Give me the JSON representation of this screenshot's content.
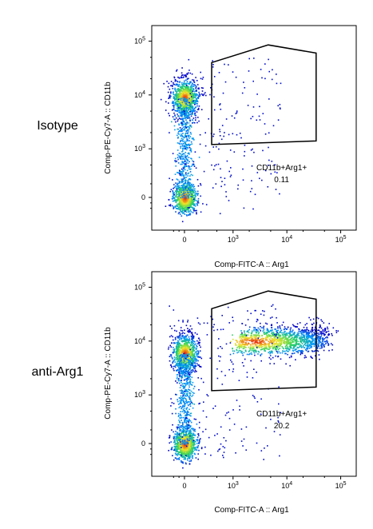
{
  "chart_data": [
    {
      "type": "scatter",
      "row_label": "Isotype",
      "title": "",
      "xlabel": "Comp-FITC-A :: Arg1",
      "ylabel": "Comp-PE-Cy7-A :: CD11b",
      "x_scale": "biexponential",
      "y_scale": "biexponential",
      "x_ticks": [
        {
          "value": 0,
          "label": "0"
        },
        {
          "value": 1000,
          "label": "10^3"
        },
        {
          "value": 10000,
          "label": "10^4"
        },
        {
          "value": 100000,
          "label": "10^5"
        }
      ],
      "y_ticks": [
        {
          "value": 0,
          "label": "0"
        },
        {
          "value": 1000,
          "label": "10^3"
        },
        {
          "value": 10000,
          "label": "10^4"
        },
        {
          "value": 100000,
          "label": "10^5"
        }
      ],
      "gate": {
        "name": "CD11b+Arg1+",
        "percent": "0.11",
        "vertices": [
          [
            400,
            40000
          ],
          [
            4500,
            85000
          ],
          [
            35000,
            60000
          ],
          [
            35000,
            1400
          ],
          [
            400,
            1200
          ]
        ]
      },
      "populations": [
        {
          "name": "CD11b- Arg1-",
          "x": 0,
          "y": 0,
          "density": "high"
        },
        {
          "name": "CD11b+ Arg1-",
          "x": 0,
          "y": 9000,
          "density": "high"
        }
      ]
    },
    {
      "type": "scatter",
      "row_label": "anti-Arg1",
      "title": "",
      "xlabel": "Comp-FITC-A :: Arg1",
      "ylabel": "Comp-PE-Cy7-A :: CD11b",
      "x_scale": "biexponential",
      "y_scale": "biexponential",
      "x_ticks": [
        {
          "value": 0,
          "label": "0"
        },
        {
          "value": 1000,
          "label": "10^3"
        },
        {
          "value": 10000,
          "label": "10^4"
        },
        {
          "value": 100000,
          "label": "10^5"
        }
      ],
      "y_ticks": [
        {
          "value": 0,
          "label": "0"
        },
        {
          "value": 1000,
          "label": "10^3"
        },
        {
          "value": 10000,
          "label": "10^4"
        },
        {
          "value": 100000,
          "label": "10^5"
        }
      ],
      "gate": {
        "name": "CD11b+Arg1+",
        "percent": "20.2",
        "vertices": [
          [
            400,
            40000
          ],
          [
            4500,
            85000
          ],
          [
            35000,
            60000
          ],
          [
            35000,
            1400
          ],
          [
            400,
            1200
          ]
        ]
      },
      "populations": [
        {
          "name": "CD11b- Arg1-",
          "x": 0,
          "y": 0,
          "density": "high"
        },
        {
          "name": "CD11b+ Arg1-",
          "x": 0,
          "y": 6000,
          "density": "high"
        },
        {
          "name": "CD11b+ Arg1+",
          "x": 2500,
          "y": 10000,
          "density": "medium"
        }
      ]
    }
  ]
}
